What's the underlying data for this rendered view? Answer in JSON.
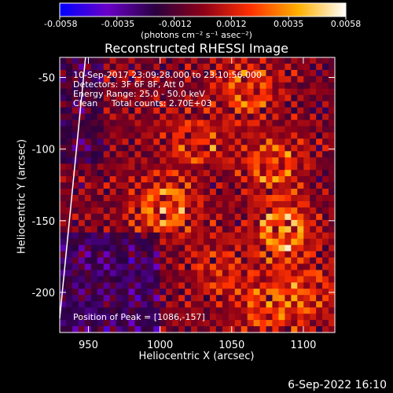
{
  "chart_data": {
    "type": "heatmap",
    "title": "Reconstructed RHESSI Image",
    "xlabel": "Heliocentric X (arcsec)",
    "ylabel": "Heliocentric Y (arcsec)",
    "xlim": [
      930,
      1122
    ],
    "ylim": [
      -228,
      -36
    ],
    "x_ticks": [
      950,
      1000,
      1050,
      1100
    ],
    "y_ticks": [
      -50,
      -100,
      -150,
      -200
    ],
    "colorbar": {
      "range": [
        -0.0058,
        0.0058
      ],
      "ticks": [
        "-0.0058",
        "-0.0035",
        "-0.0012",
        "0.0012",
        "0.0035",
        "0.0058"
      ],
      "unit": "(photons cm⁻² s⁻¹ asec⁻²)",
      "colormap": [
        "#0000ff",
        "#6a00c8",
        "#2a0040",
        "#8c0018",
        "#ff3000",
        "#ffb000",
        "#ffffff"
      ]
    },
    "annotations": [
      "10-Sep-2017 23:09:28.000 to 23:10:56.000",
      "Detectors: 3F 6F 8F, Att 0",
      "Energy Range: 25.0 - 50.0 keV",
      "Clean     Total counts: 2.70E+03"
    ],
    "peak_label": "Position of Peak = [1086,-157]",
    "peak": [
      1086,
      -157
    ],
    "sources": [
      {
        "x": 1086,
        "y": -157,
        "value": 0.0058
      },
      {
        "x": 1003,
        "y": -141,
        "value": 0.0052
      },
      {
        "x": 1078,
        "y": -110,
        "value": 0.004
      },
      {
        "x": 1062,
        "y": -58,
        "value": 0.004
      },
      {
        "x": 1075,
        "y": -210,
        "value": 0.0038
      },
      {
        "x": 1025,
        "y": -95,
        "value": 0.0032
      },
      {
        "x": 1105,
        "y": -200,
        "value": 0.003
      },
      {
        "x": 1040,
        "y": -185,
        "value": 0.0026
      }
    ],
    "limb_line": [
      [
        948,
        -36
      ],
      [
        930,
        -218
      ]
    ]
  },
  "footer": "6-Sep-2022 16:10"
}
